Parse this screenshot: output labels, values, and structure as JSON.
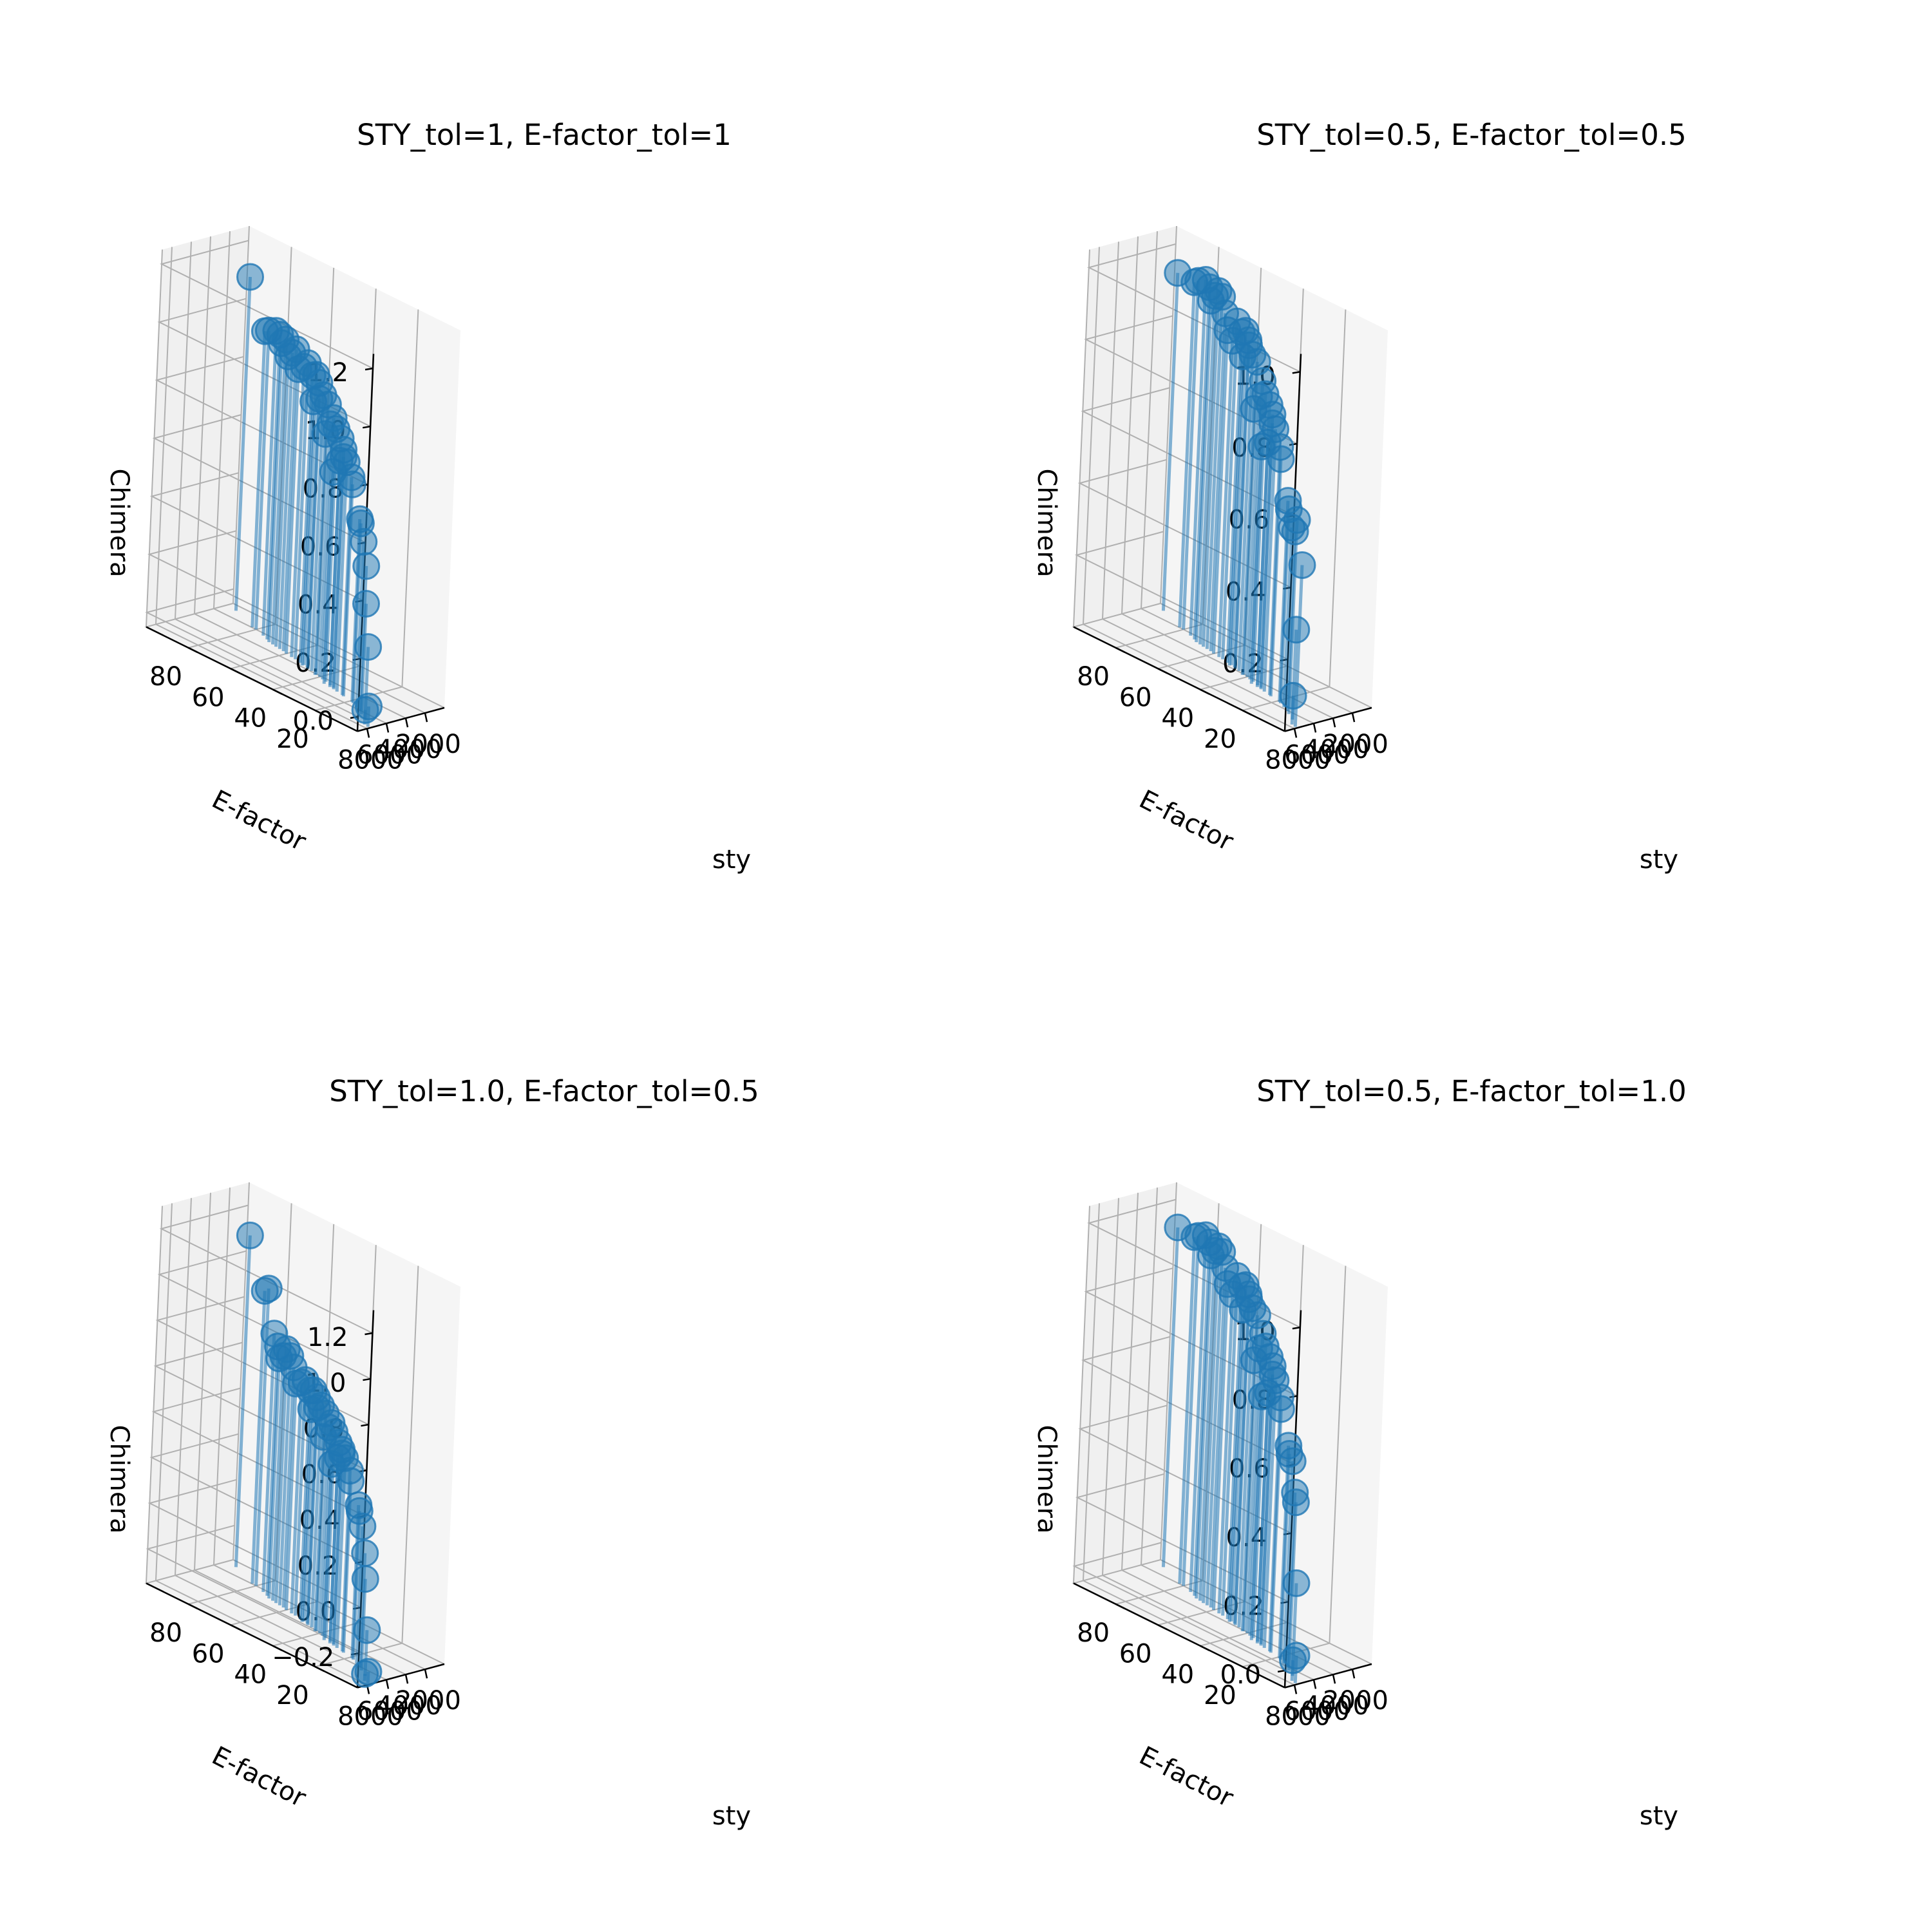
{
  "chart_data": [
    {
      "type": "scatter3d",
      "title": "STY_tol=1, E-factor_tol=1",
      "xlabel": "sty",
      "ylabel": "E-factor",
      "zlabel": "Chimera",
      "xlim": [
        0,
        9000
      ],
      "ylim": [
        0,
        100
      ],
      "zlim": [
        -0.05,
        1.25
      ],
      "xticks": [
        "2000",
        "4000",
        "6000",
        "8000"
      ],
      "yticks": [
        "20",
        "40",
        "60",
        "80"
      ],
      "zticks": [
        "0.0",
        "0.2",
        "0.4",
        "0.6",
        "0.8",
        "1.0",
        "1.2"
      ],
      "grid": true,
      "color": "#1f77b4",
      "points": [
        [
          7700,
          1,
          0.02
        ],
        [
          7600,
          3,
          0.0
        ],
        [
          6900,
          6,
          0.2
        ],
        [
          6400,
          10,
          0.33
        ],
        [
          6100,
          12,
          0.45
        ],
        [
          5800,
          15,
          0.52
        ],
        [
          5500,
          18,
          0.57
        ],
        [
          5400,
          19,
          0.58
        ],
        [
          5200,
          24,
          0.68
        ],
        [
          5100,
          25,
          0.7
        ],
        [
          5000,
          28,
          0.74
        ],
        [
          4900,
          30,
          0.75
        ],
        [
          4850,
          32,
          0.73
        ],
        [
          4800,
          35,
          0.68
        ],
        [
          4700,
          31,
          0.77
        ],
        [
          4600,
          33,
          0.8
        ],
        [
          4400,
          36,
          0.82
        ],
        [
          4300,
          38,
          0.85
        ],
        [
          4200,
          42,
          0.78
        ],
        [
          4150,
          40,
          0.82
        ],
        [
          4050,
          42,
          0.88
        ],
        [
          3900,
          45,
          0.9
        ],
        [
          3850,
          47,
          0.88
        ],
        [
          3800,
          50,
          0.86
        ],
        [
          3700,
          48,
          0.93
        ],
        [
          3600,
          50,
          0.95
        ],
        [
          3550,
          52,
          0.94
        ],
        [
          3400,
          55,
          0.97
        ],
        [
          3350,
          57,
          0.95
        ],
        [
          3250,
          60,
          0.93
        ],
        [
          3100,
          62,
          0.99
        ],
        [
          3050,
          64,
          0.97
        ],
        [
          3000,
          66,
          0.95
        ],
        [
          2900,
          68,
          1.0
        ],
        [
          2850,
          70,
          0.98
        ],
        [
          2600,
          72,
          1.0
        ],
        [
          2350,
          75,
          1.0
        ],
        [
          2000,
          80,
          0.98
        ],
        [
          1950,
          82,
          0.97
        ],
        [
          800,
          95,
          1.1
        ]
      ]
    },
    {
      "type": "scatter3d",
      "title": "STY_tol=0.5, E-factor_tol=0.5",
      "xlabel": "sty",
      "ylabel": "E-factor",
      "zlabel": "Chimera",
      "xlim": [
        0,
        9000
      ],
      "ylim": [
        0,
        100
      ],
      "zlim": [
        0.0,
        1.05
      ],
      "xticks": [
        "2000",
        "4000",
        "6000",
        "8000"
      ],
      "yticks": [
        "20",
        "40",
        "60",
        "80"
      ],
      "zticks": [
        "0.2",
        "0.4",
        "0.6",
        "0.8",
        "1.0"
      ],
      "grid": true,
      "color": "#1f77b4",
      "points": [
        [
          7700,
          1,
          0.45
        ],
        [
          7600,
          3,
          0.08
        ],
        [
          6900,
          6,
          0.25
        ],
        [
          6400,
          10,
          0.54
        ],
        [
          6100,
          12,
          0.5
        ],
        [
          5800,
          15,
          0.5
        ],
        [
          5500,
          18,
          0.54
        ],
        [
          5400,
          19,
          0.56
        ],
        [
          5200,
          24,
          0.66
        ],
        [
          5100,
          25,
          0.69
        ],
        [
          5000,
          28,
          0.73
        ],
        [
          4900,
          30,
          0.74
        ],
        [
          4850,
          32,
          0.68
        ],
        [
          4800,
          35,
          0.66
        ],
        [
          4700,
          31,
          0.76
        ],
        [
          4600,
          33,
          0.78
        ],
        [
          4400,
          36,
          0.8
        ],
        [
          4300,
          38,
          0.83
        ],
        [
          4200,
          42,
          0.74
        ],
        [
          4150,
          40,
          0.78
        ],
        [
          4050,
          42,
          0.87
        ],
        [
          3900,
          45,
          0.88
        ],
        [
          3850,
          47,
          0.9
        ],
        [
          3800,
          50,
          0.86
        ],
        [
          3700,
          48,
          0.91
        ],
        [
          3600,
          50,
          0.93
        ],
        [
          3550,
          52,
          0.92
        ],
        [
          3400,
          55,
          0.94
        ],
        [
          3350,
          57,
          0.88
        ],
        [
          3250,
          60,
          0.9
        ],
        [
          3100,
          62,
          0.94
        ],
        [
          3050,
          64,
          0.98
        ],
        [
          3000,
          66,
          0.99
        ],
        [
          2900,
          68,
          0.97
        ],
        [
          2850,
          70,
          0.95
        ],
        [
          2600,
          72,
          0.98
        ],
        [
          2350,
          75,
          0.99
        ],
        [
          2000,
          80,
          0.97
        ],
        [
          1950,
          82,
          0.96
        ],
        [
          800,
          95,
          0.94
        ]
      ]
    },
    {
      "type": "scatter3d",
      "title": "STY_tol=1.0, E-factor_tol=0.5",
      "xlabel": "sty",
      "ylabel": "E-factor",
      "zlabel": "Chimera",
      "xlim": [
        0,
        9000
      ],
      "ylim": [
        0,
        100
      ],
      "zlim": [
        -0.35,
        1.3
      ],
      "xticks": [
        "2000",
        "4000",
        "6000",
        "8000"
      ],
      "yticks": [
        "20",
        "40",
        "60",
        "80"
      ],
      "zticks": [
        "−0.2",
        "0.0",
        "0.2",
        "0.4",
        "0.6",
        "0.8",
        "1.0",
        "1.2"
      ],
      "grid": true,
      "color": "#1f77b4",
      "points": [
        [
          7700,
          1,
          -0.3
        ],
        [
          7600,
          3,
          -0.32
        ],
        [
          6900,
          6,
          -0.15
        ],
        [
          6400,
          10,
          0.05
        ],
        [
          6100,
          12,
          0.15
        ],
        [
          5800,
          15,
          0.25
        ],
        [
          5500,
          18,
          0.3
        ],
        [
          5400,
          19,
          0.32
        ],
        [
          5200,
          24,
          0.4
        ],
        [
          5100,
          25,
          0.44
        ],
        [
          5000,
          28,
          0.48
        ],
        [
          4900,
          30,
          0.49
        ],
        [
          4850,
          32,
          0.46
        ],
        [
          4800,
          35,
          0.42
        ],
        [
          4700,
          31,
          0.5
        ],
        [
          4600,
          33,
          0.52
        ],
        [
          4400,
          36,
          0.55
        ],
        [
          4300,
          38,
          0.58
        ],
        [
          4200,
          42,
          0.5
        ],
        [
          4150,
          40,
          0.55
        ],
        [
          4050,
          42,
          0.6
        ],
        [
          3900,
          45,
          0.62
        ],
        [
          3850,
          47,
          0.6
        ],
        [
          3800,
          50,
          0.58
        ],
        [
          3700,
          48,
          0.64
        ],
        [
          3600,
          50,
          0.66
        ],
        [
          3550,
          52,
          0.65
        ],
        [
          3400,
          55,
          0.68
        ],
        [
          3350,
          57,
          0.66
        ],
        [
          3250,
          60,
          0.64
        ],
        [
          3100,
          62,
          0.7
        ],
        [
          3050,
          64,
          0.74
        ],
        [
          3000,
          66,
          0.76
        ],
        [
          2900,
          68,
          0.72
        ],
        [
          2850,
          70,
          0.7
        ],
        [
          2600,
          72,
          0.74
        ],
        [
          2350,
          75,
          0.78
        ],
        [
          2000,
          80,
          0.95
        ],
        [
          1950,
          82,
          0.93
        ],
        [
          800,
          95,
          1.1
        ]
      ]
    },
    {
      "type": "scatter3d",
      "title": "STY_tol=0.5, E-factor_tol=1.0",
      "xlabel": "sty",
      "ylabel": "E-factor",
      "zlabel": "Chimera",
      "xlim": [
        0,
        9000
      ],
      "ylim": [
        0,
        100
      ],
      "zlim": [
        -0.05,
        1.05
      ],
      "xticks": [
        "2000",
        "4000",
        "6000",
        "8000"
      ],
      "yticks": [
        "20",
        "40",
        "60",
        "80"
      ],
      "zticks": [
        "0.0",
        "0.2",
        "0.4",
        "0.6",
        "0.8",
        "1.0"
      ],
      "grid": true,
      "color": "#1f77b4",
      "points": [
        [
          7700,
          1,
          0.03
        ],
        [
          7600,
          3,
          0.01
        ],
        [
          6900,
          6,
          0.22
        ],
        [
          6400,
          10,
          0.44
        ],
        [
          6100,
          12,
          0.46
        ],
        [
          5800,
          15,
          0.54
        ],
        [
          5500,
          18,
          0.55
        ],
        [
          5400,
          19,
          0.57
        ],
        [
          5200,
          24,
          0.66
        ],
        [
          5100,
          25,
          0.69
        ],
        [
          5000,
          28,
          0.73
        ],
        [
          4900,
          30,
          0.74
        ],
        [
          4850,
          32,
          0.68
        ],
        [
          4800,
          35,
          0.66
        ],
        [
          4700,
          31,
          0.76
        ],
        [
          4600,
          33,
          0.78
        ],
        [
          4400,
          36,
          0.8
        ],
        [
          4300,
          38,
          0.83
        ],
        [
          4200,
          42,
          0.74
        ],
        [
          4150,
          40,
          0.78
        ],
        [
          4050,
          42,
          0.87
        ],
        [
          3900,
          45,
          0.88
        ],
        [
          3850,
          47,
          0.9
        ],
        [
          3800,
          50,
          0.86
        ],
        [
          3700,
          48,
          0.91
        ],
        [
          3600,
          50,
          0.93
        ],
        [
          3550,
          52,
          0.92
        ],
        [
          3400,
          55,
          0.94
        ],
        [
          3350,
          57,
          0.88
        ],
        [
          3250,
          60,
          0.9
        ],
        [
          3100,
          62,
          0.94
        ],
        [
          3050,
          64,
          0.98
        ],
        [
          3000,
          66,
          0.99
        ],
        [
          2900,
          68,
          0.97
        ],
        [
          2850,
          70,
          0.95
        ],
        [
          2600,
          72,
          0.98
        ],
        [
          2350,
          75,
          0.99
        ],
        [
          2000,
          80,
          0.97
        ],
        [
          1950,
          82,
          0.96
        ],
        [
          800,
          95,
          0.94
        ]
      ]
    }
  ]
}
